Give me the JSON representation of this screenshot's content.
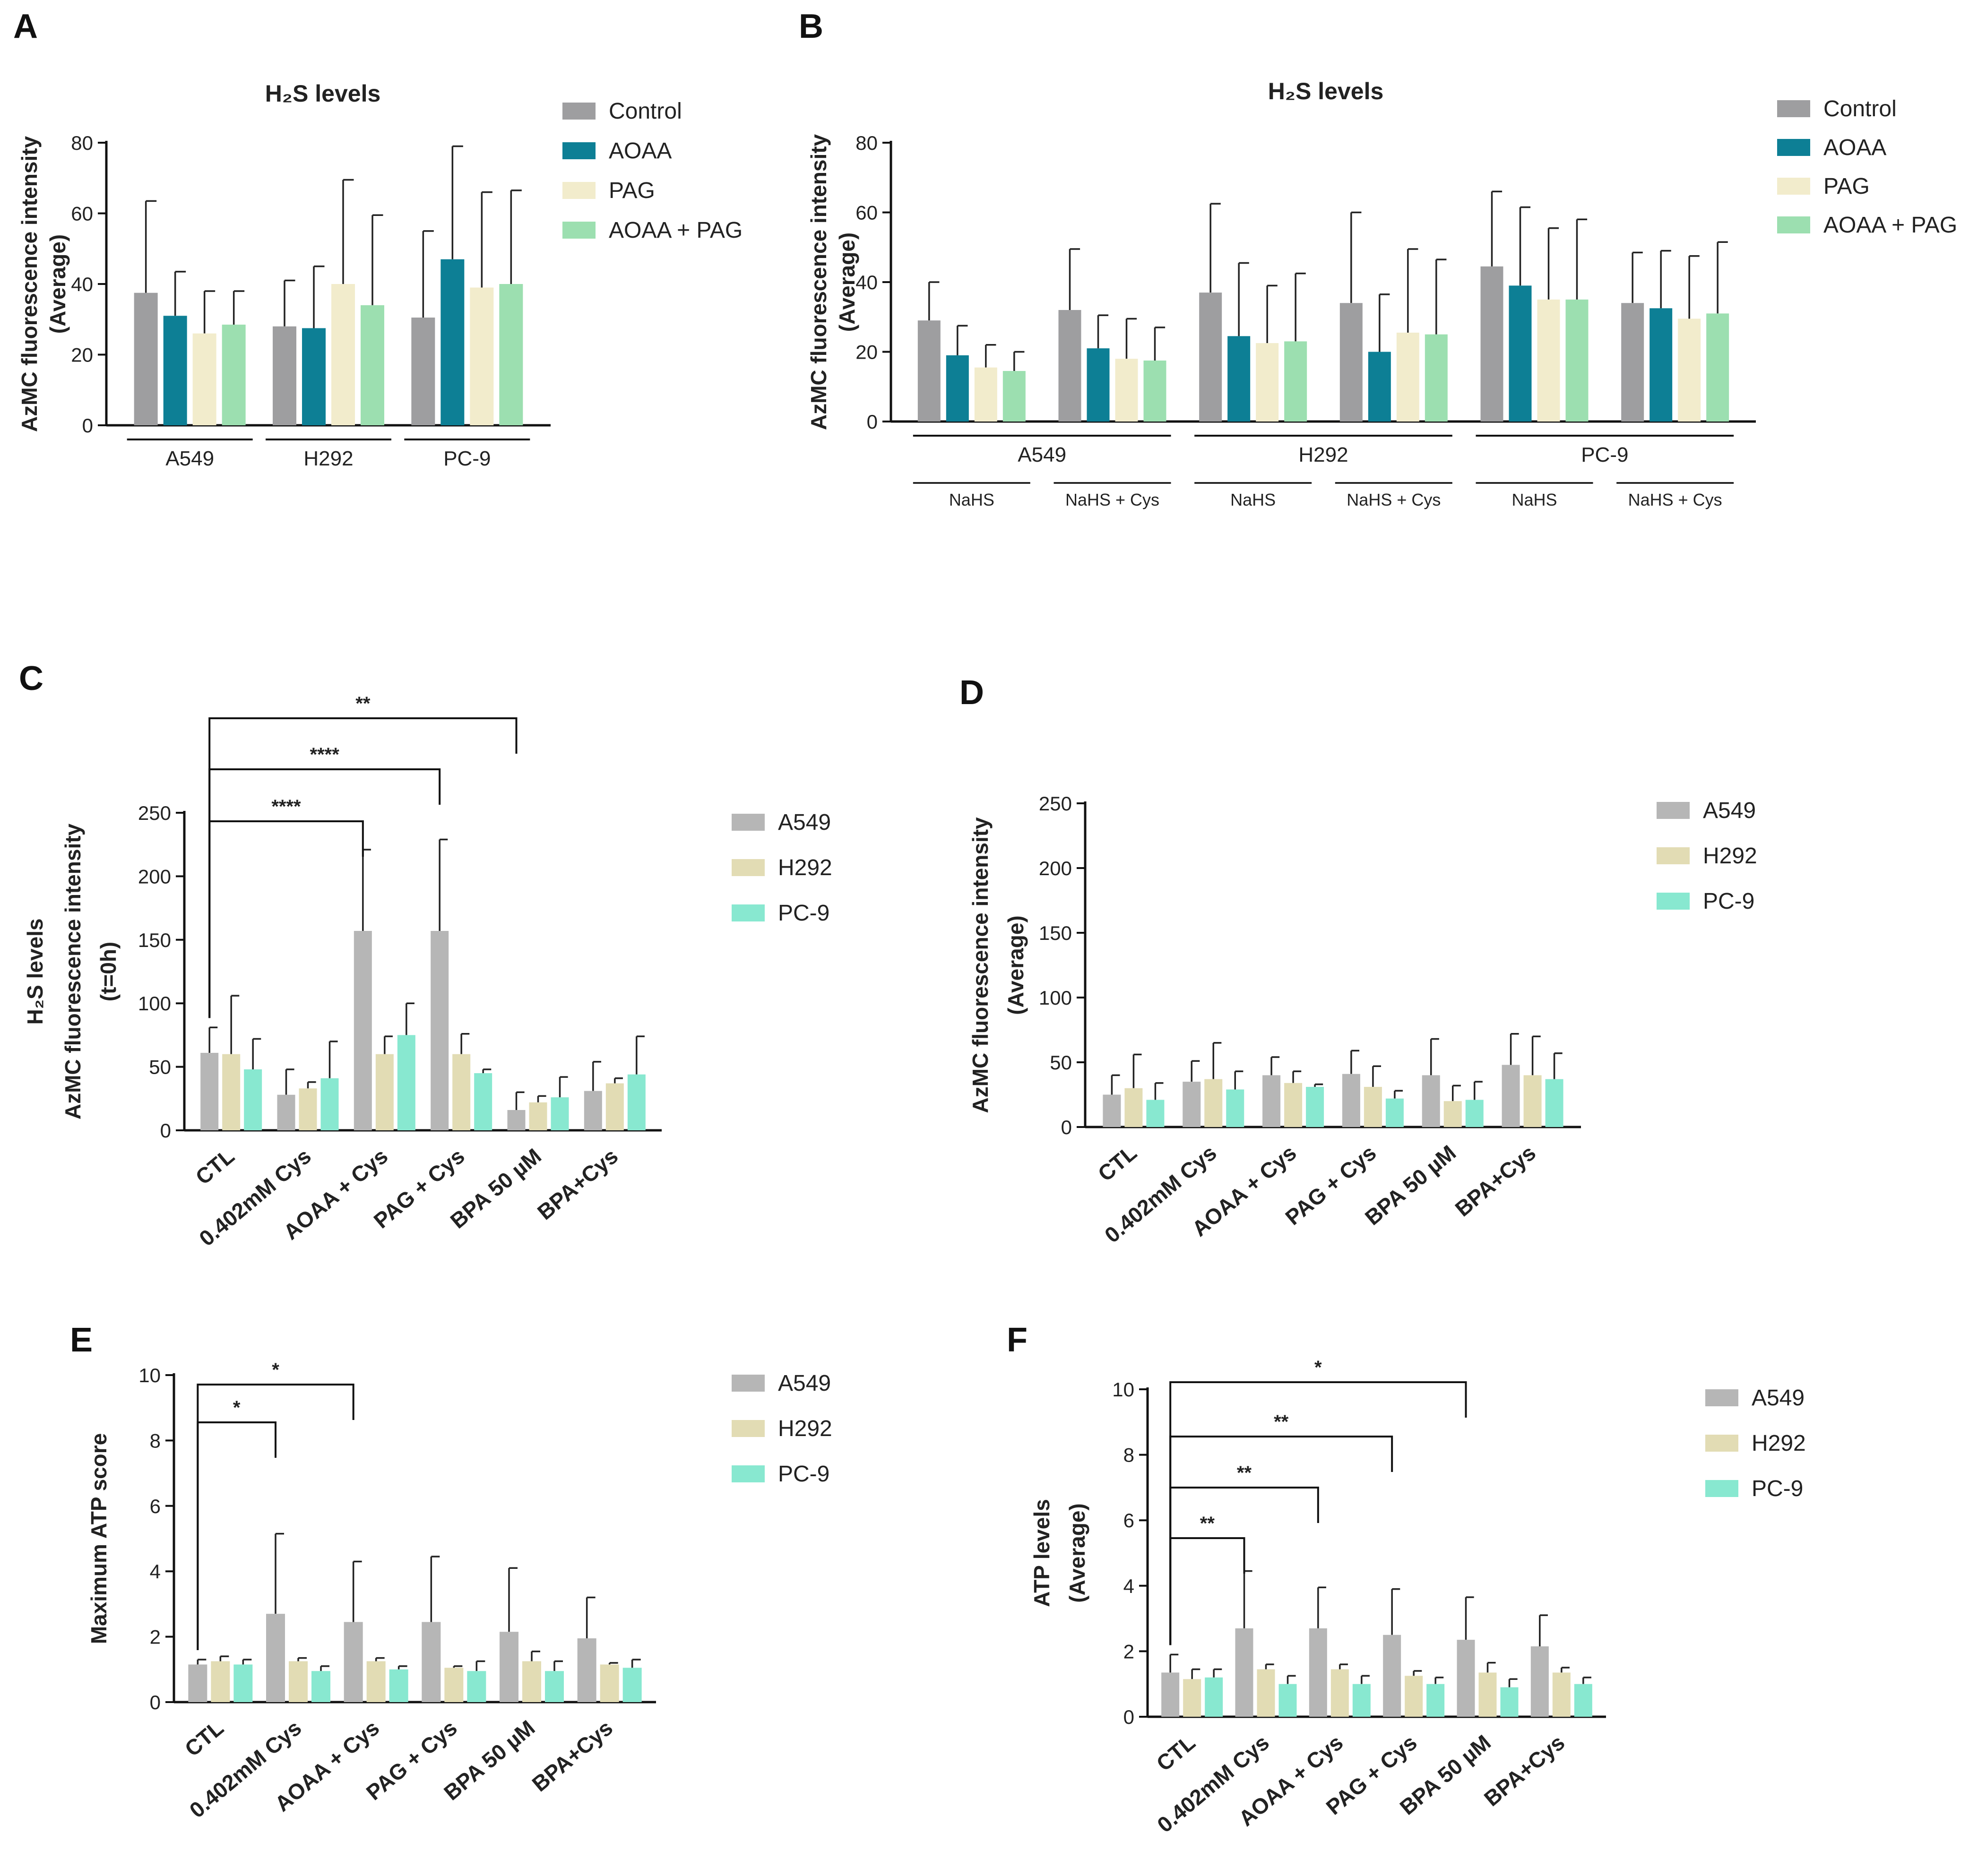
{
  "colors": {
    "Control": "#9e9ea0",
    "AOAA": "#0d7f95",
    "PAG": "#f2eccc",
    "AOAA + PAG": "#9cdfb0",
    "A549": "#b6b6b6",
    "H292": "#e2dcb4",
    "PC-9": "#88e8d0"
  },
  "chart_data": [
    {
      "panel": "A",
      "type": "bar",
      "title": "H₂S levels",
      "ylabel": "AzMC fluorescence intensity",
      "ylabel2": "(Average)",
      "ylim": [
        0,
        80
      ],
      "yticks": [
        "0",
        "20",
        "40",
        "60",
        "80"
      ],
      "groups": [
        "A549",
        "H292",
        "PC-9"
      ],
      "series": [
        {
          "name": "Control",
          "values": [
            37.5,
            28,
            30.5
          ],
          "errors": [
            26,
            13,
            24.5
          ]
        },
        {
          "name": "AOAA",
          "values": [
            31,
            27.5,
            47
          ],
          "errors": [
            12.5,
            17.5,
            32
          ]
        },
        {
          "name": "PAG",
          "values": [
            26,
            40,
            39
          ],
          "errors": [
            12,
            29.5,
            27
          ]
        },
        {
          "name": "AOAA + PAG",
          "values": [
            28.5,
            34,
            40
          ],
          "errors": [
            9.5,
            25.5,
            26.5
          ]
        }
      ],
      "legend": "right"
    },
    {
      "panel": "B",
      "type": "bar",
      "title": "H₂S levels",
      "ylabel": "AzMC fluorescence intensity",
      "ylabel2": "(Average)",
      "ylim": [
        0,
        80
      ],
      "yticks": [
        "0",
        "20",
        "40",
        "60",
        "80"
      ],
      "groups": [
        "NaHS",
        "NaHS + Cys",
        "NaHS",
        "NaHS + Cys",
        "NaHS",
        "NaHS + Cys"
      ],
      "supergroups": [
        "A549",
        "H292",
        "PC-9"
      ],
      "series": [
        {
          "name": "Control",
          "values": [
            29,
            32,
            37,
            34,
            44.5,
            34
          ],
          "errors": [
            11,
            17.5,
            25.5,
            26,
            21.5,
            14.5
          ]
        },
        {
          "name": "AOAA",
          "values": [
            19,
            21,
            24.5,
            20,
            39,
            32.5
          ],
          "errors": [
            8.5,
            9.5,
            21,
            16.5,
            22.5,
            16.5
          ]
        },
        {
          "name": "PAG",
          "values": [
            15.5,
            18,
            22.5,
            25.5,
            35,
            29.5
          ],
          "errors": [
            6.5,
            11.5,
            16.5,
            24,
            20.5,
            18
          ]
        },
        {
          "name": "AOAA + PAG",
          "values": [
            14.5,
            17.5,
            23,
            25,
            35,
            31
          ],
          "errors": [
            5.5,
            9.5,
            19.5,
            21.5,
            23,
            20.5
          ]
        }
      ],
      "legend": "right"
    },
    {
      "panel": "C",
      "type": "bar",
      "ylabel": "H₂S levels",
      "ylabel2": "AzMC fluorescence intensity",
      "ylabel3": "(t=0h)",
      "ylim": [
        0,
        250
      ],
      "yticks": [
        "0",
        "50",
        "100",
        "150",
        "200",
        "250"
      ],
      "categories": [
        "CTL",
        "0.402mM Cys",
        "AOAA + Cys",
        "PAG + Cys",
        "BPA 50 µM",
        "BPA+Cys"
      ],
      "series": [
        {
          "name": "A549",
          "values": [
            61,
            28,
            157,
            157,
            16,
            31
          ],
          "errors": [
            20,
            20,
            64,
            72,
            14,
            23
          ]
        },
        {
          "name": "H292",
          "values": [
            60,
            33,
            60,
            60,
            22,
            37
          ],
          "errors": [
            46,
            5,
            14,
            16,
            5,
            4
          ]
        },
        {
          "name": "PC-9",
          "values": [
            48,
            41,
            75,
            45,
            26,
            44
          ],
          "errors": [
            24,
            29,
            25,
            3,
            16,
            30
          ]
        }
      ],
      "significance": [
        {
          "from": "CTL",
          "to": "AOAA + Cys",
          "label": "****"
        },
        {
          "from": "CTL",
          "to": "PAG + Cys",
          "label": "****"
        },
        {
          "from": "CTL",
          "to": "BPA 50 µM",
          "label": "**"
        }
      ],
      "legend": "right"
    },
    {
      "panel": "D",
      "type": "bar",
      "ylabel": "AzMC fluorescence intensity",
      "ylabel2": "(Average)",
      "ylim": [
        0,
        250
      ],
      "yticks": [
        "0",
        "50",
        "100",
        "150",
        "200",
        "250"
      ],
      "categories": [
        "CTL",
        "0.402mM Cys",
        "AOAA + Cys",
        "PAG + Cys",
        "BPA 50 µM",
        "BPA+Cys"
      ],
      "series": [
        {
          "name": "A549",
          "values": [
            25,
            35,
            40,
            41,
            40,
            48
          ],
          "errors": [
            15,
            16,
            14,
            18,
            28,
            24
          ]
        },
        {
          "name": "H292",
          "values": [
            30,
            37,
            34,
            31,
            20,
            40
          ],
          "errors": [
            26,
            28,
            9,
            16,
            12,
            30
          ]
        },
        {
          "name": "PC-9",
          "values": [
            21,
            29,
            31,
            22,
            21,
            37
          ],
          "errors": [
            13,
            14,
            2,
            6,
            14,
            20
          ]
        }
      ],
      "legend": "right"
    },
    {
      "panel": "E",
      "type": "bar",
      "ylabel": "Maximum ATP score",
      "ylim": [
        0,
        10
      ],
      "yticks": [
        "0",
        "2",
        "4",
        "6",
        "8",
        "10"
      ],
      "categories": [
        "CTL",
        "0.402mM Cys",
        "AOAA + Cys",
        "PAG + Cys",
        "BPA 50 µM",
        "BPA+Cys"
      ],
      "series": [
        {
          "name": "A549",
          "values": [
            1.15,
            2.7,
            2.45,
            2.45,
            2.15,
            1.95
          ],
          "errors": [
            0.15,
            2.45,
            1.85,
            2.0,
            1.95,
            1.25
          ]
        },
        {
          "name": "H292",
          "values": [
            1.25,
            1.25,
            1.25,
            1.05,
            1.25,
            1.15
          ],
          "errors": [
            0.15,
            0.1,
            0.1,
            0.05,
            0.3,
            0.05
          ]
        },
        {
          "name": "PC-9",
          "values": [
            1.15,
            0.95,
            1.0,
            0.95,
            0.95,
            1.05
          ],
          "errors": [
            0.15,
            0.15,
            0.1,
            0.3,
            0.3,
            0.25
          ]
        }
      ],
      "significance": [
        {
          "from": "CTL",
          "to": "0.402mM Cys",
          "label": "*"
        },
        {
          "from": "CTL",
          "to": "AOAA + Cys",
          "label": "*"
        }
      ],
      "legend": "right"
    },
    {
      "panel": "F",
      "type": "bar",
      "ylabel": "ATP levels",
      "ylabel2": "(Average)",
      "ylim": [
        0,
        10
      ],
      "yticks": [
        "0",
        "2",
        "4",
        "6",
        "8",
        "10"
      ],
      "categories": [
        "CTL",
        "0.402mM Cys",
        "AOAA + Cys",
        "PAG + Cys",
        "BPA 50 µM",
        "BPA+Cys"
      ],
      "series": [
        {
          "name": "A549",
          "values": [
            1.35,
            2.7,
            2.7,
            2.5,
            2.35,
            2.15
          ],
          "errors": [
            0.55,
            1.75,
            1.25,
            1.4,
            1.3,
            0.95
          ]
        },
        {
          "name": "H292",
          "values": [
            1.15,
            1.45,
            1.45,
            1.25,
            1.35,
            1.35
          ],
          "errors": [
            0.3,
            0.15,
            0.15,
            0.15,
            0.3,
            0.15
          ]
        },
        {
          "name": "PC-9",
          "values": [
            1.2,
            1.0,
            1.0,
            1.0,
            0.9,
            1.0
          ],
          "errors": [
            0.25,
            0.25,
            0.25,
            0.2,
            0.25,
            0.2
          ]
        }
      ],
      "significance": [
        {
          "from": "CTL",
          "to": "0.402mM Cys",
          "label": "**"
        },
        {
          "from": "CTL",
          "to": "AOAA + Cys",
          "label": "**"
        },
        {
          "from": "CTL",
          "to": "PAG + Cys",
          "label": "**"
        },
        {
          "from": "CTL",
          "to": "BPA 50 µM",
          "label": "*"
        }
      ],
      "legend": "right"
    }
  ]
}
